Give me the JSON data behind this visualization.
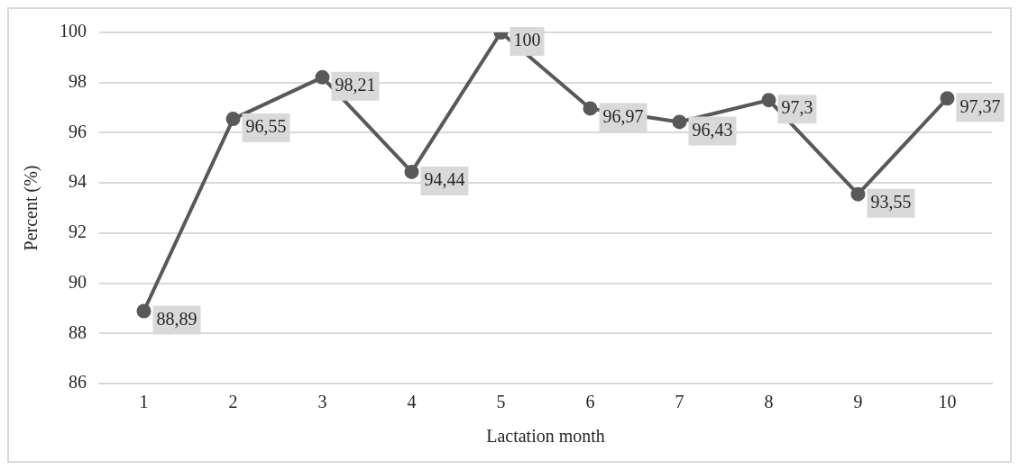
{
  "chart_data": {
    "type": "line",
    "xlabel": "Lactation month",
    "ylabel": "Percent (%)",
    "categories": [
      "1",
      "2",
      "3",
      "4",
      "5",
      "6",
      "7",
      "8",
      "9",
      "10"
    ],
    "series": [
      {
        "color": "#595959",
        "values": [
          88.89,
          96.55,
          98.21,
          94.44,
          100,
          96.97,
          96.43,
          97.3,
          93.55,
          97.37
        ],
        "value_labels": [
          "88,89",
          "96,55",
          "98,21",
          "94,44",
          "100",
          "96,97",
          "96,43",
          "97,3",
          "93,55",
          "97,37"
        ]
      }
    ],
    "ylim": [
      86,
      100
    ],
    "yticks": [
      86,
      88,
      90,
      92,
      94,
      96,
      98,
      100
    ],
    "grid": "y",
    "legend": false,
    "marker": "circle",
    "line_style": "solid"
  }
}
